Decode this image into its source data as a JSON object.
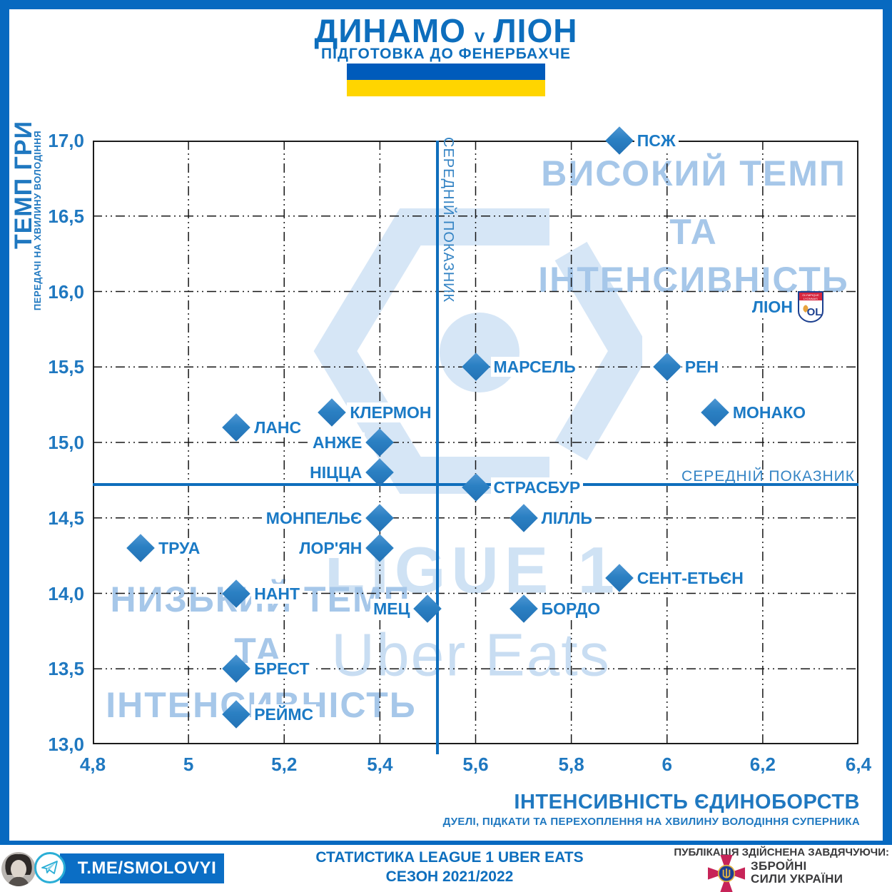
{
  "header": {
    "title_home": "ДИНАМО",
    "title_vs": "v",
    "title_away": "ЛІОН",
    "subtitle": "ПІДГОТОВКА ДО ФЕНЕРБАХЧЕ",
    "flag_colors": {
      "top": "#005bbb",
      "bottom": "#ffd500"
    }
  },
  "chart_data": {
    "type": "scatter",
    "title": "ДИНАМО v ЛІОН",
    "xlabel": "ІНТЕНСИВНІСТЬ ЄДИНОБОРСТВ",
    "xlabel_sub": "ДУЕЛІ, ПІДКАТИ ТА ПЕРЕХОПЛЕННЯ НА ХВИЛИНУ ВОЛОДІННЯ СУПЕРНИКА",
    "ylabel": "ТЕМП ГРИ",
    "ylabel_sub": "ПЕРЕДАЧІ НА ХВИЛИНУ ВОЛОДІННЯ",
    "xlim": [
      4.8,
      6.4
    ],
    "ylim": [
      13.0,
      17.0
    ],
    "grid": "dash-dot",
    "legend_position": "none",
    "x_ticks": [
      {
        "v": 4.8,
        "label": "4,8"
      },
      {
        "v": 5.0,
        "label": "5"
      },
      {
        "v": 5.2,
        "label": "5,2"
      },
      {
        "v": 5.4,
        "label": "5,4"
      },
      {
        "v": 5.6,
        "label": "5,6"
      },
      {
        "v": 5.8,
        "label": "5,8"
      },
      {
        "v": 6.0,
        "label": "6"
      },
      {
        "v": 6.2,
        "label": "6,2"
      },
      {
        "v": 6.4,
        "label": "6,4"
      }
    ],
    "y_ticks": [
      {
        "v": 17.0,
        "label": "17,0"
      },
      {
        "v": 16.5,
        "label": "16,5"
      },
      {
        "v": 16.0,
        "label": "16,0"
      },
      {
        "v": 15.5,
        "label": "15,5"
      },
      {
        "v": 15.0,
        "label": "15,0"
      },
      {
        "v": 14.5,
        "label": "14,5"
      },
      {
        "v": 14.0,
        "label": "14,0"
      },
      {
        "v": 13.5,
        "label": "13,5"
      },
      {
        "v": 13.0,
        "label": "13,0"
      }
    ],
    "mean_x": 5.52,
    "mean_y": 14.72,
    "mean_label": "СЕРЕДНІЙ ПОКАЗНИК",
    "quadrant_top_right": [
      "ВИСОКИЙ ТЕМП",
      "ТА",
      "ІНТЕНСИВНІСТЬ"
    ],
    "quadrant_bottom_left": [
      "НИЗЬКИЙ ТЕМП",
      "ТА",
      "ІНТЕНСИВНІСТЬ"
    ],
    "watermark_line1": "LIGUE 1",
    "watermark_line2": "Uber Eats",
    "points": [
      {
        "name": "ПСЖ",
        "x": 5.9,
        "y": 17.0,
        "side": "right",
        "marker": "diamond"
      },
      {
        "name": "ЛІОН",
        "x": 6.3,
        "y": 15.9,
        "side": "left",
        "marker": "lyon-logo",
        "logo_text": "OL",
        "logo_band": "OLYMPIQUE LYONNAIS"
      },
      {
        "name": "МАРСЕЛЬ",
        "x": 5.6,
        "y": 15.5,
        "side": "right",
        "marker": "diamond"
      },
      {
        "name": "РЕН",
        "x": 6.0,
        "y": 15.5,
        "side": "right",
        "marker": "diamond"
      },
      {
        "name": "МОНАКО",
        "x": 6.1,
        "y": 15.2,
        "side": "right",
        "marker": "diamond"
      },
      {
        "name": "КЛЕРМОН",
        "x": 5.3,
        "y": 15.2,
        "side": "right",
        "marker": "diamond"
      },
      {
        "name": "ЛАНС",
        "x": 5.1,
        "y": 15.1,
        "side": "right",
        "marker": "diamond"
      },
      {
        "name": "АНЖЕ",
        "x": 5.4,
        "y": 15.0,
        "side": "left",
        "marker": "diamond"
      },
      {
        "name": "НІЦЦА",
        "x": 5.4,
        "y": 14.8,
        "side": "left",
        "marker": "diamond"
      },
      {
        "name": "СТРАСБУР",
        "x": 5.6,
        "y": 14.7,
        "side": "right",
        "marker": "diamond"
      },
      {
        "name": "ЛІЛЛЬ",
        "x": 5.7,
        "y": 14.5,
        "side": "right",
        "marker": "diamond"
      },
      {
        "name": "МОНПЕЛЬЄ",
        "x": 5.4,
        "y": 14.5,
        "side": "left",
        "marker": "diamond"
      },
      {
        "name": "ЛОР'ЯН",
        "x": 5.4,
        "y": 14.3,
        "side": "left",
        "marker": "diamond"
      },
      {
        "name": "ТРУА",
        "x": 4.9,
        "y": 14.3,
        "side": "right",
        "marker": "diamond"
      },
      {
        "name": "СЕНТ-ЕТЬЄН",
        "x": 5.9,
        "y": 14.1,
        "side": "right",
        "marker": "diamond"
      },
      {
        "name": "НАНТ",
        "x": 5.1,
        "y": 14.0,
        "side": "right",
        "marker": "diamond"
      },
      {
        "name": "МЕЦ",
        "x": 5.5,
        "y": 13.9,
        "side": "left",
        "marker": "diamond"
      },
      {
        "name": "БОРДО",
        "x": 5.7,
        "y": 13.9,
        "side": "right",
        "marker": "diamond"
      },
      {
        "name": "БРЕСТ",
        "x": 5.1,
        "y": 13.5,
        "side": "right",
        "marker": "diamond"
      },
      {
        "name": "РЕЙМС",
        "x": 5.1,
        "y": 13.2,
        "side": "right",
        "marker": "diamond"
      }
    ],
    "colors": {
      "frame": "#0769c0",
      "marker": "#2b80c3",
      "labels": "#1b7ac5",
      "ticks": "#1f78c0",
      "mean_line": "#0f6ebc",
      "quadrant_text": "#a6c7e9",
      "watermark": "#d6e6f6"
    }
  },
  "footer": {
    "telegram_handle": "T.ME/SMOLOVYI",
    "stats_line1": "СТАТИСТИКА LEAGUE 1 UBER EATS",
    "stats_line2": "СЕЗОН 2021/2022",
    "credit_line": "ПУБЛІКАЦІЯ ЗДІЙСНЕНА ЗАВДЯЧУЮЧИ:",
    "forces_line1": "ЗБРОЙНІ",
    "forces_line2": "СИЛИ УКРАЇНИ"
  }
}
